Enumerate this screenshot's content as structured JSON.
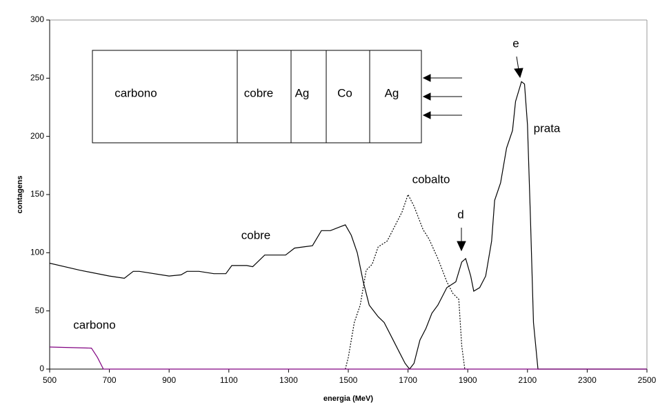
{
  "chart_data": {
    "type": "line",
    "xlabel": "energia (MeV)",
    "ylabel": "contagens",
    "xlim": [
      500,
      2500
    ],
    "ylim": [
      0,
      300
    ],
    "xticks": [
      500,
      700,
      900,
      1100,
      1300,
      1500,
      1700,
      1900,
      2100,
      2300,
      2500
    ],
    "yticks": [
      0,
      50,
      100,
      150,
      200,
      250,
      300
    ],
    "grid": false,
    "annotations": [
      "carbono",
      "cobre",
      "cobalto",
      "prata",
      "d",
      "e"
    ],
    "inset": {
      "labels": [
        "carbono",
        "cobre",
        "Ag",
        "Co",
        "Ag"
      ]
    },
    "series": [
      {
        "color": "#000000",
        "dash": "solid",
        "x": [
          500,
          600,
          700,
          750,
          780,
          800,
          900,
          940,
          960,
          1000,
          1050,
          1090,
          1110,
          1160,
          1180,
          1220,
          1260,
          1290,
          1320,
          1350,
          1380,
          1410,
          1440,
          1470,
          1490,
          1510,
          1530,
          1550,
          1570,
          1600,
          1620,
          1650,
          1670,
          1690,
          1705,
          1720,
          1740,
          1760,
          1780,
          1800,
          1830,
          1860,
          1880,
          1893,
          1910,
          1920,
          1940,
          1960,
          1980,
          1990,
          2010,
          2030,
          2050,
          2060,
          2080,
          2090,
          2100,
          2110,
          2120,
          2135,
          2500
        ],
        "values": [
          91,
          85,
          80,
          78,
          84,
          84,
          80,
          81,
          84,
          84,
          82,
          82,
          89,
          89,
          88,
          98,
          98,
          98,
          104,
          105,
          106,
          119,
          119,
          122,
          124,
          115,
          100,
          75,
          55,
          45,
          40,
          25,
          15,
          5,
          0,
          5,
          25,
          35,
          48,
          55,
          70,
          75,
          92,
          95,
          80,
          67,
          70,
          80,
          110,
          145,
          160,
          190,
          205,
          230,
          247,
          245,
          210,
          130,
          40,
          0,
          0
        ]
      },
      {
        "color": "#000000",
        "dash": "dotted",
        "x": [
          1490,
          1500,
          1520,
          1540,
          1560,
          1580,
          1600,
          1630,
          1660,
          1680,
          1700,
          1720,
          1750,
          1770,
          1800,
          1830,
          1850,
          1870,
          1880,
          1890
        ],
        "values": [
          0,
          10,
          40,
          55,
          85,
          90,
          105,
          110,
          125,
          135,
          150,
          140,
          120,
          112,
          95,
          75,
          65,
          60,
          20,
          0
        ]
      },
      {
        "color": "#800080",
        "dash": "solid",
        "x": [
          500,
          640,
          660,
          680,
          2500
        ],
        "values": [
          19,
          18,
          10,
          0,
          0
        ]
      }
    ]
  }
}
